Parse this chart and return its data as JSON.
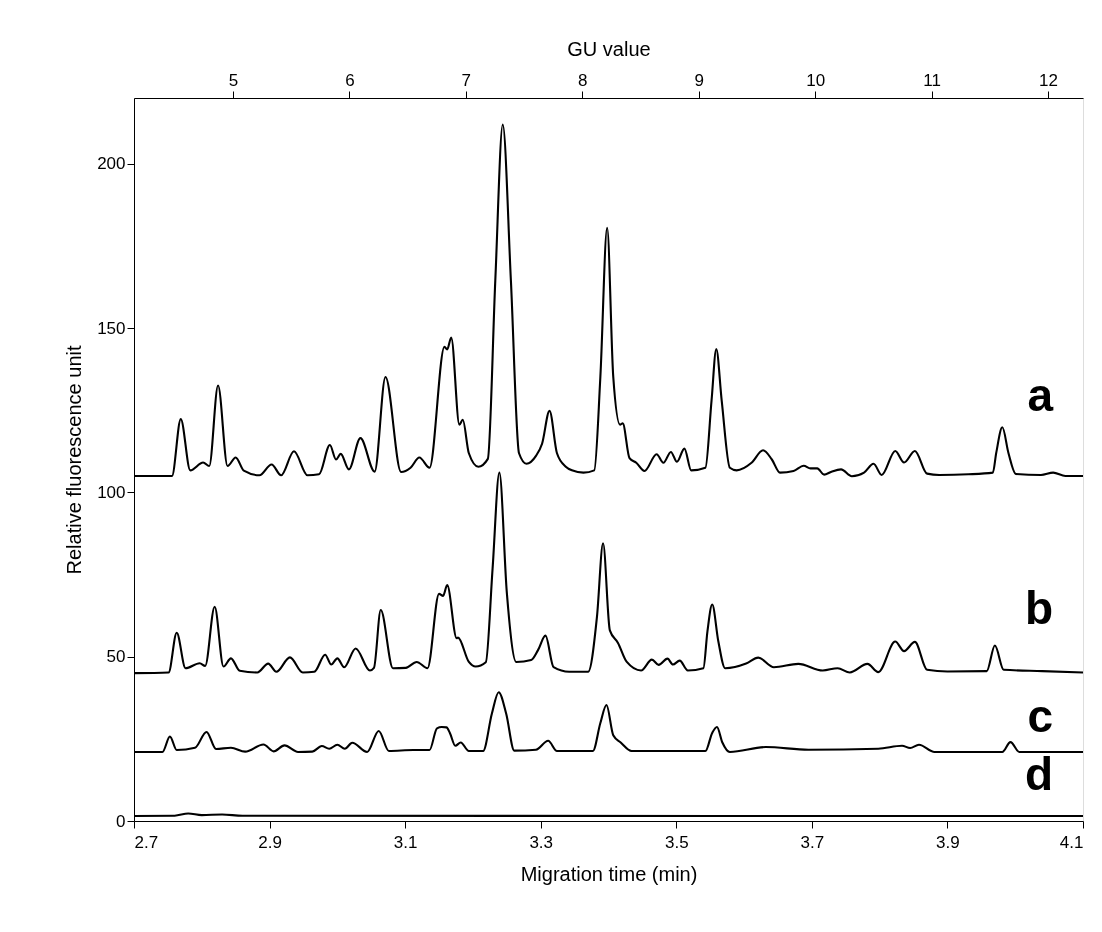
{
  "chart_data": {
    "type": "line",
    "xlabel": "Migration time (min)",
    "ylabel": "Relative fluorescence unit",
    "x2label": "GU value",
    "xlim": [
      2.7,
      4.1
    ],
    "xticks": [
      2.7,
      2.9,
      3.1,
      3.3,
      3.5,
      3.7,
      3.9,
      4.1
    ],
    "ylim": [
      0,
      220
    ],
    "yticks": [
      0,
      50,
      100,
      150,
      200
    ],
    "x2lim": [
      4.15,
      12.3
    ],
    "x2ticks": [
      5,
      6,
      7,
      8,
      9,
      10,
      11,
      12
    ],
    "grid": false,
    "legend": false,
    "marker": "none",
    "line_style": "solid",
    "series": [
      {
        "name": "a",
        "color": "#000000",
        "x": [
          2.7,
          2.756,
          2.769,
          2.783,
          2.802,
          2.811,
          2.824,
          2.838,
          2.85,
          2.862,
          2.885,
          2.903,
          2.917,
          2.936,
          2.956,
          2.973,
          2.989,
          2.998,
          3.005,
          3.017,
          3.034,
          3.055,
          3.071,
          3.094,
          3.108,
          3.121,
          3.136,
          3.158,
          3.162,
          3.168,
          3.18,
          3.185,
          3.194,
          3.208,
          3.222,
          3.233,
          3.244,
          3.256,
          3.268,
          3.279,
          3.293,
          3.302,
          3.313,
          3.324,
          3.337,
          3.346,
          3.363,
          3.379,
          3.388,
          3.398,
          3.407,
          3.417,
          3.421,
          3.431,
          3.441,
          3.453,
          3.471,
          3.481,
          3.492,
          3.501,
          3.512,
          3.522,
          3.543,
          3.552,
          3.559,
          3.567,
          3.579,
          3.589,
          3.611,
          3.628,
          3.641,
          3.653,
          3.673,
          3.688,
          3.698,
          3.708,
          3.718,
          3.729,
          3.743,
          3.759,
          3.777,
          3.791,
          3.803,
          3.823,
          3.836,
          3.852,
          3.87,
          3.888,
          3.931,
          3.967,
          3.972,
          3.981,
          3.99,
          4.001,
          4.038,
          4.056,
          4.074,
          4.1
        ],
        "values": [
          105,
          105,
          122.3,
          106.7,
          109.1,
          108,
          132.5,
          108,
          110.6,
          106.6,
          105.2,
          108.5,
          105.2,
          112.5,
          105.2,
          105.5,
          114.4,
          110,
          111.7,
          107,
          116.5,
          106.3,
          135.1,
          106.2,
          107.5,
          110.6,
          107.5,
          144.3,
          143.5,
          147.1,
          120.6,
          122.1,
          111.9,
          107.8,
          110.2,
          164.5,
          211.9,
          164.5,
          111.9,
          108.7,
          111.1,
          114.8,
          124.8,
          111.9,
          107.8,
          106.7,
          106,
          106.7,
          135.2,
          180.5,
          135.2,
          120.6,
          121,
          110.4,
          109,
          106.5,
          111.6,
          109,
          112.3,
          109.3,
          113.3,
          106.7,
          107.5,
          127.9,
          143.6,
          127.9,
          107.5,
          106.7,
          109,
          112.8,
          110,
          106,
          106.5,
          108.1,
          107.3,
          107.3,
          105.4,
          106.3,
          107,
          104.9,
          106,
          108.7,
          105.3,
          112.6,
          109.1,
          112.6,
          105.7,
          105.3,
          105.5,
          106,
          112,
          119.8,
          112,
          105.6,
          105.3,
          106,
          105,
          105
        ]
      },
      {
        "name": "b",
        "color": "#000000",
        "x": [
          2.7,
          2.751,
          2.763,
          2.776,
          2.797,
          2.805,
          2.819,
          2.832,
          2.843,
          2.856,
          2.882,
          2.898,
          2.91,
          2.93,
          2.949,
          2.966,
          2.982,
          2.991,
          3.0,
          3.01,
          3.027,
          3.048,
          3.054,
          3.064,
          3.082,
          3.101,
          3.117,
          3.133,
          3.15,
          3.156,
          3.162,
          3.176,
          3.178,
          3.194,
          3.204,
          3.219,
          3.229,
          3.239,
          3.25,
          3.264,
          3.286,
          3.296,
          3.307,
          3.319,
          3.342,
          3.37,
          3.383,
          3.392,
          3.402,
          3.414,
          3.427,
          3.448,
          3.464,
          3.474,
          3.487,
          3.495,
          3.505,
          3.517,
          3.54,
          3.546,
          3.553,
          3.562,
          3.572,
          3.603,
          3.621,
          3.644,
          3.68,
          3.716,
          3.738,
          3.756,
          3.782,
          3.798,
          3.823,
          3.836,
          3.852,
          3.87,
          3.9,
          3.958,
          3.97,
          3.983,
          4.04,
          4.1
        ],
        "values": [
          45,
          45.2,
          57.3,
          46.5,
          48,
          47.2,
          65.2,
          47,
          49.5,
          45.7,
          45.2,
          47.9,
          45.4,
          49.8,
          45.2,
          45.4,
          50.6,
          47.6,
          49.5,
          46.8,
          52.5,
          45.8,
          46.6,
          64.2,
          46.5,
          46.6,
          48.4,
          46.5,
          69.1,
          68.5,
          71.8,
          55.6,
          55.8,
          48.4,
          47,
          48.3,
          76.8,
          106,
          69.5,
          48.4,
          49,
          52,
          56.4,
          46.8,
          45.4,
          45.4,
          62.2,
          84.5,
          58,
          54.2,
          48.4,
          45.8,
          49.1,
          47.5,
          49.4,
          47.6,
          48.8,
          45.8,
          46.5,
          57.8,
          65.9,
          54.7,
          46.5,
          47.9,
          49.7,
          46.8,
          47.8,
          45.8,
          46.5,
          45.2,
          47.8,
          45.3,
          54.6,
          51.7,
          54.5,
          46,
          45.5,
          45.6,
          53.4,
          46,
          45.6,
          45.2
        ]
      },
      {
        "name": "c",
        "color": "#000000",
        "x": [
          2.7,
          2.742,
          2.753,
          2.763,
          2.79,
          2.807,
          2.821,
          2.843,
          2.864,
          2.891,
          2.906,
          2.922,
          2.942,
          2.963,
          2.977,
          2.988,
          3.0,
          3.011,
          3.022,
          3.044,
          3.061,
          3.076,
          3.112,
          3.136,
          3.147,
          3.154,
          3.161,
          3.166,
          3.174,
          3.182,
          3.194,
          3.215,
          3.228,
          3.238,
          3.249,
          3.261,
          3.293,
          3.311,
          3.324,
          3.377,
          3.388,
          3.397,
          3.407,
          3.418,
          3.434,
          3.543,
          3.553,
          3.56,
          3.568,
          3.579,
          3.632,
          3.695,
          3.798,
          3.833,
          3.845,
          3.858,
          3.881,
          3.981,
          3.993,
          4.006,
          4.1
        ],
        "values": [
          21,
          21,
          25.7,
          21.6,
          22.3,
          27.1,
          21.9,
          22.3,
          21.1,
          23.3,
          21.2,
          23,
          21,
          21.1,
          22.8,
          22,
          23.2,
          22,
          23.8,
          21,
          27.4,
          21.3,
          21.6,
          21.6,
          28.2,
          28.6,
          28.5,
          26.8,
          22.9,
          23.9,
          21.3,
          21.3,
          32.7,
          39.2,
          32.7,
          21.4,
          21.7,
          24.4,
          21.3,
          21.3,
          29.8,
          35.3,
          26.1,
          23.9,
          21.3,
          21.3,
          26.8,
          28.6,
          23.9,
          21,
          22.5,
          21.7,
          22,
          22.9,
          22.2,
          23.2,
          21,
          21,
          24,
          21,
          21
        ]
      },
      {
        "name": "d",
        "color": "#000000",
        "x": [
          2.7,
          2.76,
          2.78,
          2.8,
          2.83,
          2.86,
          4.1
        ],
        "values": [
          1.5,
          1.6,
          2.3,
          1.8,
          2,
          1.6,
          1.5
        ]
      }
    ]
  }
}
